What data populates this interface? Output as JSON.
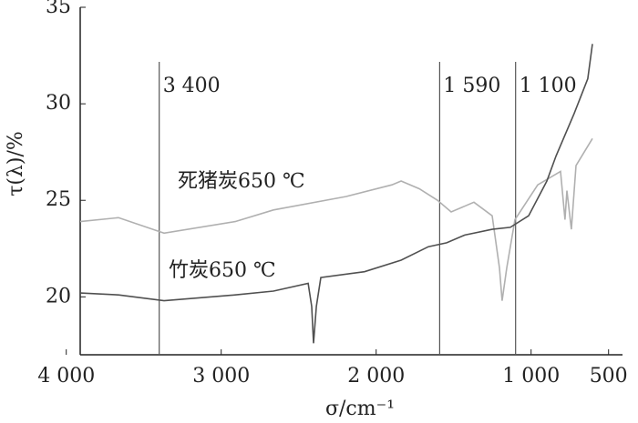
{
  "chart_data": {
    "type": "line",
    "x_label": "σ/cm⁻¹",
    "y_label": "τ(λ)/%",
    "xlim": [
      3910,
      410
    ],
    "ylim": [
      17,
      35
    ],
    "xticks": [
      {
        "value": 4000,
        "label": "4 000"
      },
      {
        "value": 3000,
        "label": "3 000"
      },
      {
        "value": 2000,
        "label": "2 000"
      },
      {
        "value": 1000,
        "label": "1 000"
      },
      500
    ],
    "yticks": [
      20,
      25,
      30,
      35
    ],
    "reversed_x": true,
    "annotations": [
      {
        "value": 3400,
        "label": "3 400"
      },
      {
        "value": 1590,
        "label": "1 590"
      },
      {
        "value": 1100,
        "label": "1 100"
      }
    ],
    "series": [
      {
        "name": "死猪炭650 ℃",
        "color": "#b0b0b0",
        "x": [
          3910,
          3663,
          3369,
          2910,
          2663,
          2193,
          1898,
          1839,
          1722,
          1604,
          1516,
          1369,
          1251,
          1204,
          1187,
          1157,
          1104,
          957,
          810,
          781,
          769,
          740,
          710,
          604
        ],
        "values": [
          23.9,
          24.1,
          23.3,
          23.9,
          24.5,
          25.2,
          25.8,
          26.0,
          25.6,
          25.0,
          24.4,
          24.9,
          24.2,
          21.5,
          19.8,
          21.5,
          24.0,
          25.8,
          26.5,
          24.0,
          25.5,
          23.5,
          26.8,
          28.2
        ]
      },
      {
        "name": "竹炭650 ℃",
        "color": "#505050",
        "x": [
          3910,
          3663,
          3369,
          2910,
          2663,
          2439,
          2416,
          2404,
          2386,
          2357,
          2075,
          1839,
          1663,
          1545,
          1428,
          1251,
          1134,
          1016,
          898,
          839,
          722,
          634,
          604
        ],
        "values": [
          20.2,
          20.1,
          19.8,
          20.1,
          20.3,
          20.7,
          19.5,
          17.6,
          19.5,
          21.0,
          21.3,
          21.9,
          22.6,
          22.8,
          23.2,
          23.5,
          23.6,
          24.2,
          26.0,
          27.3,
          29.5,
          31.3,
          33.1
        ]
      }
    ]
  }
}
